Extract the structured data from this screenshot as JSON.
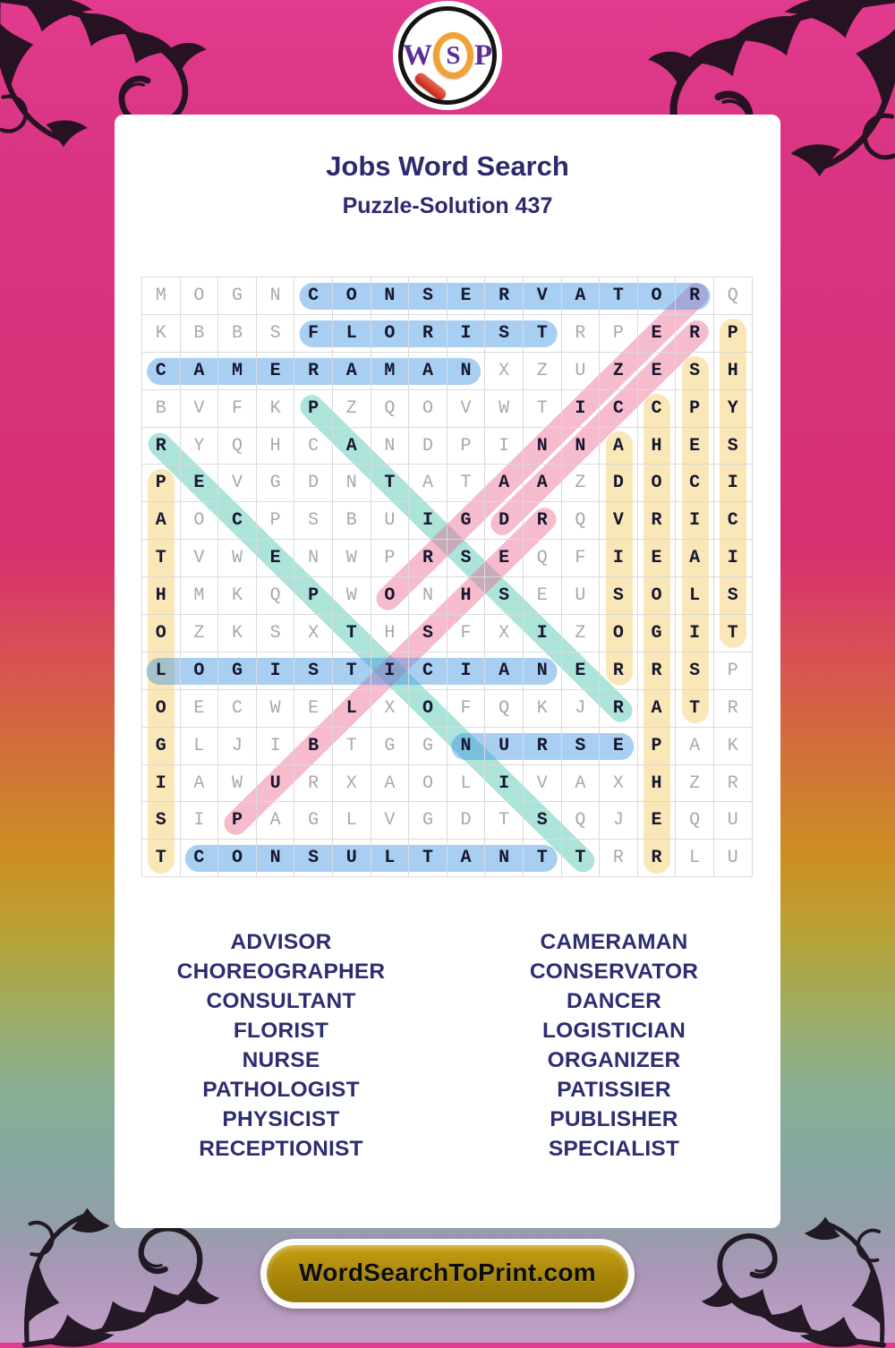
{
  "logo": {
    "w": "W",
    "s": "S",
    "p": "P"
  },
  "header": {
    "title": "Jobs Word Search",
    "subtitle": "Puzzle-Solution 437"
  },
  "grid": {
    "rows": [
      "MOGNCONSERVATORQ",
      "KBBSFLORISTRPERP",
      "CAMERAMANXZUZESH",
      "BVFKPZQOVWTICCPY",
      "RYQHCANDPINNAHES",
      "PEVGDNTATAAZDOCI",
      "AOCPSBUIGDRQVRIC",
      "TVWENWPRSEQFIEAI",
      "HMKQPWONHSEUSOLS",
      "OZKSXTHSFXIZOGIT",
      "LOGISTICIANERRSP",
      "OECWELXOFQKJRATR",
      "GLJIBTGGNURSEPAK",
      "IAWURXAOLIVAXHZR",
      "SIPAGLVGDTSQJEQU",
      "TCONSULTANTTRRLU"
    ],
    "placements": [
      {
        "word": "CONSERVATOR",
        "row": 1,
        "col": 5,
        "drow": 0,
        "dcol": 1,
        "len": 11,
        "color": "blue"
      },
      {
        "word": "FLORIST",
        "row": 2,
        "col": 5,
        "drow": 0,
        "dcol": 1,
        "len": 7,
        "color": "blue"
      },
      {
        "word": "CAMERAMAN",
        "row": 3,
        "col": 1,
        "drow": 0,
        "dcol": 1,
        "len": 9,
        "color": "blue"
      },
      {
        "word": "LOGISTICIAN",
        "row": 11,
        "col": 1,
        "drow": 0,
        "dcol": 1,
        "len": 11,
        "color": "blue"
      },
      {
        "word": "NURSE",
        "row": 13,
        "col": 9,
        "drow": 0,
        "dcol": 1,
        "len": 5,
        "color": "blue"
      },
      {
        "word": "CONSULTANT",
        "row": 16,
        "col": 2,
        "drow": 0,
        "dcol": 1,
        "len": 10,
        "color": "blue"
      },
      {
        "word": "PATHOLOGIST",
        "row": 6,
        "col": 1,
        "drow": 1,
        "dcol": 0,
        "len": 11,
        "color": "yellow"
      },
      {
        "word": "ADVISOR",
        "row": 5,
        "col": 13,
        "drow": 1,
        "dcol": 0,
        "len": 7,
        "color": "yellow"
      },
      {
        "word": "CHOREOGRAPHER",
        "row": 4,
        "col": 14,
        "drow": 1,
        "dcol": 0,
        "len": 13,
        "color": "yellow"
      },
      {
        "word": "SPECIALIST",
        "row": 3,
        "col": 15,
        "drow": 1,
        "dcol": 0,
        "len": 10,
        "color": "yellow"
      },
      {
        "word": "PHYSICIST",
        "row": 2,
        "col": 16,
        "drow": 1,
        "dcol": 0,
        "len": 9,
        "color": "yellow"
      },
      {
        "word": "RECEPTIONIST",
        "row": 5,
        "col": 1,
        "drow": 1,
        "dcol": 1,
        "len": 12,
        "color": "teal"
      },
      {
        "word": "PATISSIER",
        "row": 4,
        "col": 5,
        "drow": 1,
        "dcol": 1,
        "len": 9,
        "color": "teal"
      },
      {
        "word": "ORGANIZER",
        "row": 9,
        "col": 7,
        "drow": -1,
        "dcol": 1,
        "len": 9,
        "color": "pink"
      },
      {
        "word": "DANCER",
        "row": 7,
        "col": 10,
        "drow": -1,
        "dcol": 1,
        "len": 6,
        "color": "pink"
      },
      {
        "word": "PUBLISHER",
        "row": 15,
        "col": 3,
        "drow": -1,
        "dcol": 1,
        "len": 9,
        "color": "pink"
      }
    ]
  },
  "highlight_colors": {
    "blue": "rgba(62,148,226,0.45)",
    "yellow": "rgba(242,196,78,0.40)",
    "teal": "rgba(58,190,166,0.42)",
    "pink": "rgba(236,92,138,0.42)"
  },
  "word_list": {
    "left": [
      "ADVISOR",
      "CHOREOGRAPHER",
      "CONSULTANT",
      "FLORIST",
      "NURSE",
      "PATHOLOGIST",
      "PHYSICIST",
      "RECEPTIONIST"
    ],
    "right": [
      "CAMERAMAN",
      "CONSERVATOR",
      "DANCER",
      "LOGISTICIAN",
      "ORGANIZER",
      "PATISSIER",
      "PUBLISHER",
      "SPECIALIST"
    ]
  },
  "footer": {
    "site": "WordSearchToPrint.com"
  }
}
